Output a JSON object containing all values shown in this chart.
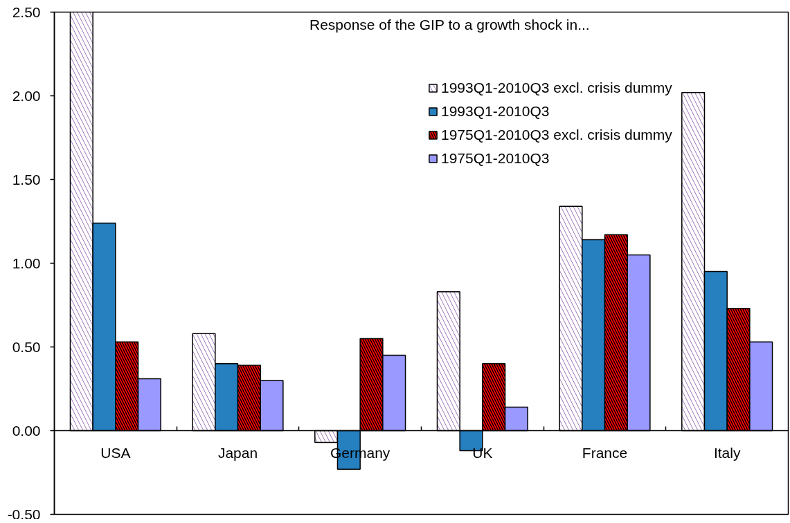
{
  "chart_data": {
    "type": "bar",
    "title": "Response of the GIP to a growth shock in...",
    "categories": [
      "USA",
      "Japan",
      "Germany",
      "UK",
      "France",
      "Italy"
    ],
    "series": [
      {
        "name": "1993Q1-2010Q3 excl. crisis dummy",
        "color": "#9b72b5",
        "values": [
          2.5,
          0.58,
          -0.07,
          0.83,
          1.34,
          2.02
        ]
      },
      {
        "name": "1993Q1-2010Q3",
        "color": "#2680c0",
        "values": [
          1.24,
          0.4,
          -0.23,
          -0.12,
          1.14,
          0.95
        ]
      },
      {
        "name": "1975Q1-2010Q3 excl. crisis dummy",
        "color": "#ff0000",
        "values": [
          0.53,
          0.39,
          0.55,
          0.4,
          1.17,
          0.73
        ]
      },
      {
        "name": "1975Q1-2010Q3",
        "color": "#9999ff",
        "values": [
          0.31,
          0.3,
          0.45,
          0.14,
          1.05,
          0.53
        ]
      }
    ],
    "ylim": [
      -0.5,
      2.5
    ],
    "yticks": [
      {
        "value": -0.5,
        "label": "-0.50"
      },
      {
        "value": 0,
        "label": "0.00"
      },
      {
        "value": 0.5,
        "label": "0.50"
      },
      {
        "value": 1,
        "label": "1.00"
      },
      {
        "value": 1.5,
        "label": "1.50"
      },
      {
        "value": 2,
        "label": "2.00"
      },
      {
        "value": 2.5,
        "label": "2.50"
      }
    ],
    "legend": "top right"
  }
}
